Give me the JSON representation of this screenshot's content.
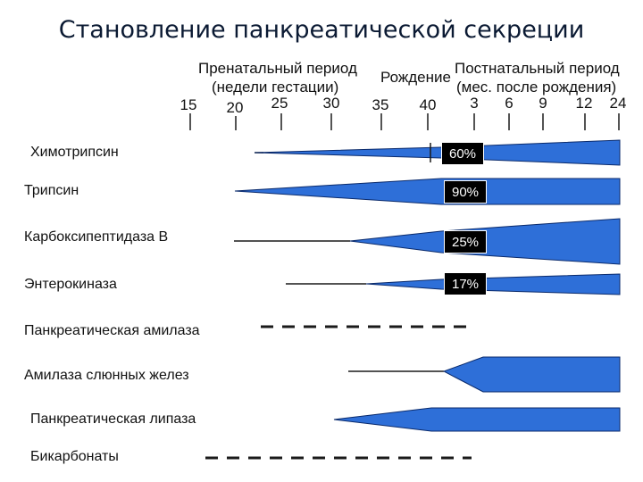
{
  "title": "Становление панкреатической секреции",
  "header": {
    "prenatal_line1": "Пренатальный период",
    "prenatal_line2": "(недели гестации)",
    "birth": "Рождение",
    "postnatal_line1": "Постнатальный период",
    "postnatal_line2": "(мес. после рождения)"
  },
  "ticks": [
    "15",
    "20",
    "25",
    "30",
    "35",
    "40",
    "3",
    "6",
    "9",
    "12",
    "24"
  ],
  "rows": [
    {
      "label": "Химотрипсин",
      "percent": "60%"
    },
    {
      "label": "Трипсин",
      "percent": "90%"
    },
    {
      "label": "Карбоксипептидаза В",
      "percent": "25%"
    },
    {
      "label": "Энтерокиназа",
      "percent": "17%"
    },
    {
      "label": "Панкреатическая амилаза",
      "percent": ""
    },
    {
      "label": "Амилаза слюнных желез",
      "percent": ""
    },
    {
      "label": "Панкреатическая липаза",
      "percent": ""
    },
    {
      "label": "Бикарбонаты",
      "percent": ""
    }
  ],
  "colors": {
    "wedge_fill": "#2e6fd8",
    "wedge_stroke": "#0a2a6b",
    "line": "#1a1a1a"
  }
}
